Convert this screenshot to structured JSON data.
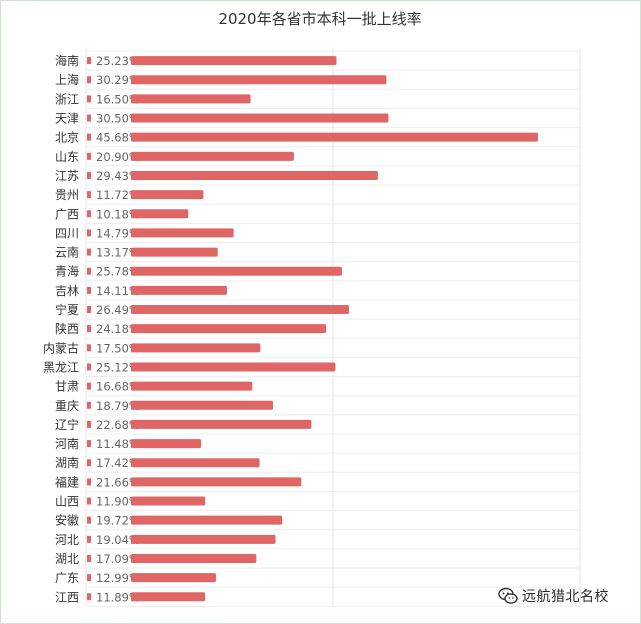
{
  "chart_data": {
    "type": "bar",
    "orientation": "horizontal",
    "title": "2020年各省市本科一批上线率",
    "xlabel": "",
    "ylabel": "",
    "xlim": [
      0,
      50
    ],
    "grid": true,
    "legend": "none",
    "bar_color": "#e06666",
    "categories": [
      "海南",
      "上海",
      "浙江",
      "天津",
      "北京",
      "山东",
      "江苏",
      "贵州",
      "广西",
      "四川",
      "云南",
      "青海",
      "吉林",
      "宁夏",
      "陕西",
      "内蒙古",
      "黑龙江",
      "甘肃",
      "重庆",
      "辽宁",
      "河南",
      "湖南",
      "福建",
      "山西",
      "安徽",
      "河北",
      "湖北",
      "广东",
      "江西"
    ],
    "values": [
      25.23,
      30.29,
      16.5,
      30.5,
      45.68,
      20.9,
      29.43,
      11.72,
      10.18,
      14.79,
      13.17,
      25.78,
      14.11,
      26.49,
      24.18,
      17.5,
      25.12,
      16.68,
      18.79,
      22.68,
      11.48,
      17.42,
      21.66,
      11.9,
      19.72,
      19.04,
      17.09,
      12.99,
      11.89
    ],
    "data_labels": [
      "25.23%",
      "30.29%",
      "16.50%",
      "30.50%",
      "45.68%",
      "20.90%",
      "29.43%",
      "11.72%",
      "10.18%",
      "14.79%",
      "13.17%",
      "25.78%",
      "14.11%",
      "26.49%",
      "24.18%",
      "17.50%",
      "25.12%",
      "16.68%",
      "18.79%",
      "22.68%",
      "11.48%",
      "17.42%",
      "21.66%",
      "11.90%",
      "19.72%",
      "19.04%",
      "17.09%",
      "12.99%",
      "11.89%"
    ]
  },
  "watermark": {
    "text": "远航猎北名校",
    "icon": "wechat-icon"
  }
}
